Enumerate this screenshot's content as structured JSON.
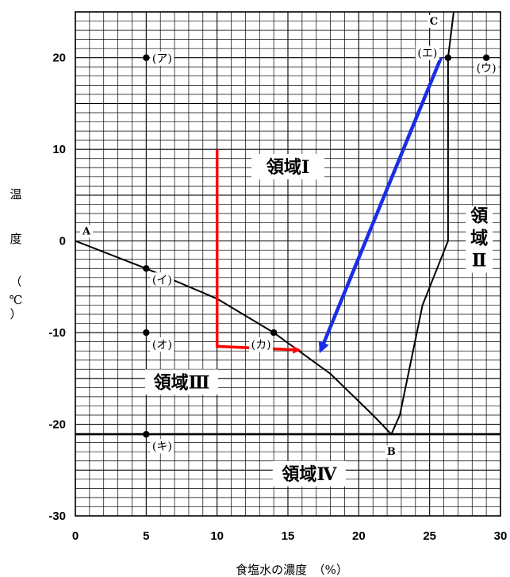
{
  "chart_data": {
    "type": "line",
    "xlabel": "食塩水の濃度　（%）",
    "ylabel": [
      "温",
      "度",
      "（",
      "℃",
      "）"
    ],
    "xlim": [
      0,
      30
    ],
    "ylim": [
      -30,
      25
    ],
    "x_ticks": [
      "0",
      "5",
      "10",
      "15",
      "20",
      "25",
      "30"
    ],
    "y_ticks": [
      "20",
      "10",
      "0",
      "-10",
      "-20",
      "-30"
    ],
    "grid": true,
    "freezing_curve": [
      [
        0,
        0
      ],
      [
        5,
        -3
      ],
      [
        10,
        -6.3
      ],
      [
        14,
        -10
      ],
      [
        18,
        -14.5
      ],
      [
        21,
        -19
      ],
      [
        22.3,
        -21.1
      ]
    ],
    "solubility_curve": [
      [
        22.3,
        -21.1
      ],
      [
        22.9,
        -19
      ],
      [
        24.5,
        -7
      ],
      [
        26.3,
        0
      ],
      [
        26.3,
        20
      ],
      [
        26.7,
        25
      ]
    ],
    "eutectic_line_y": -21.1,
    "points": [
      {
        "label": "(ア)",
        "x": 5,
        "y": 20
      },
      {
        "label": "(イ)",
        "x": 5,
        "y": -3
      },
      {
        "label": "(オ)",
        "x": 5,
        "y": -10
      },
      {
        "label": "(キ)",
        "x": 5,
        "y": -21.1
      },
      {
        "label": "(カ)",
        "x": 14,
        "y": -10
      },
      {
        "label": "(エ)",
        "x": 26.3,
        "y": 20
      },
      {
        "label": "(ウ)",
        "x": 29,
        "y": 20
      }
    ],
    "corner_labels": [
      {
        "label": "A",
        "x": 0,
        "y": 0
      },
      {
        "label": "B",
        "x": 22.3,
        "y": -21.1
      },
      {
        "label": "C",
        "x": 26.3,
        "y": 25
      }
    ],
    "regions": [
      {
        "label": "領域Ⅰ",
        "x": 15,
        "y": 7.5
      },
      {
        "label": "領域Ⅱ",
        "x": 28.5,
        "y": 0
      },
      {
        "label": "領域Ⅲ",
        "x": 7.5,
        "y": -16
      },
      {
        "label": "領域Ⅳ",
        "x": 16.5,
        "y": -26
      }
    ],
    "arrows": [
      {
        "color": "#ff0000",
        "path": [
          [
            10,
            10
          ],
          [
            10,
            -11.5
          ],
          [
            15.8,
            -11.9
          ]
        ]
      },
      {
        "color": "#1a2ee6",
        "path": [
          [
            25.8,
            20
          ],
          [
            17.3,
            -12
          ]
        ]
      }
    ]
  }
}
